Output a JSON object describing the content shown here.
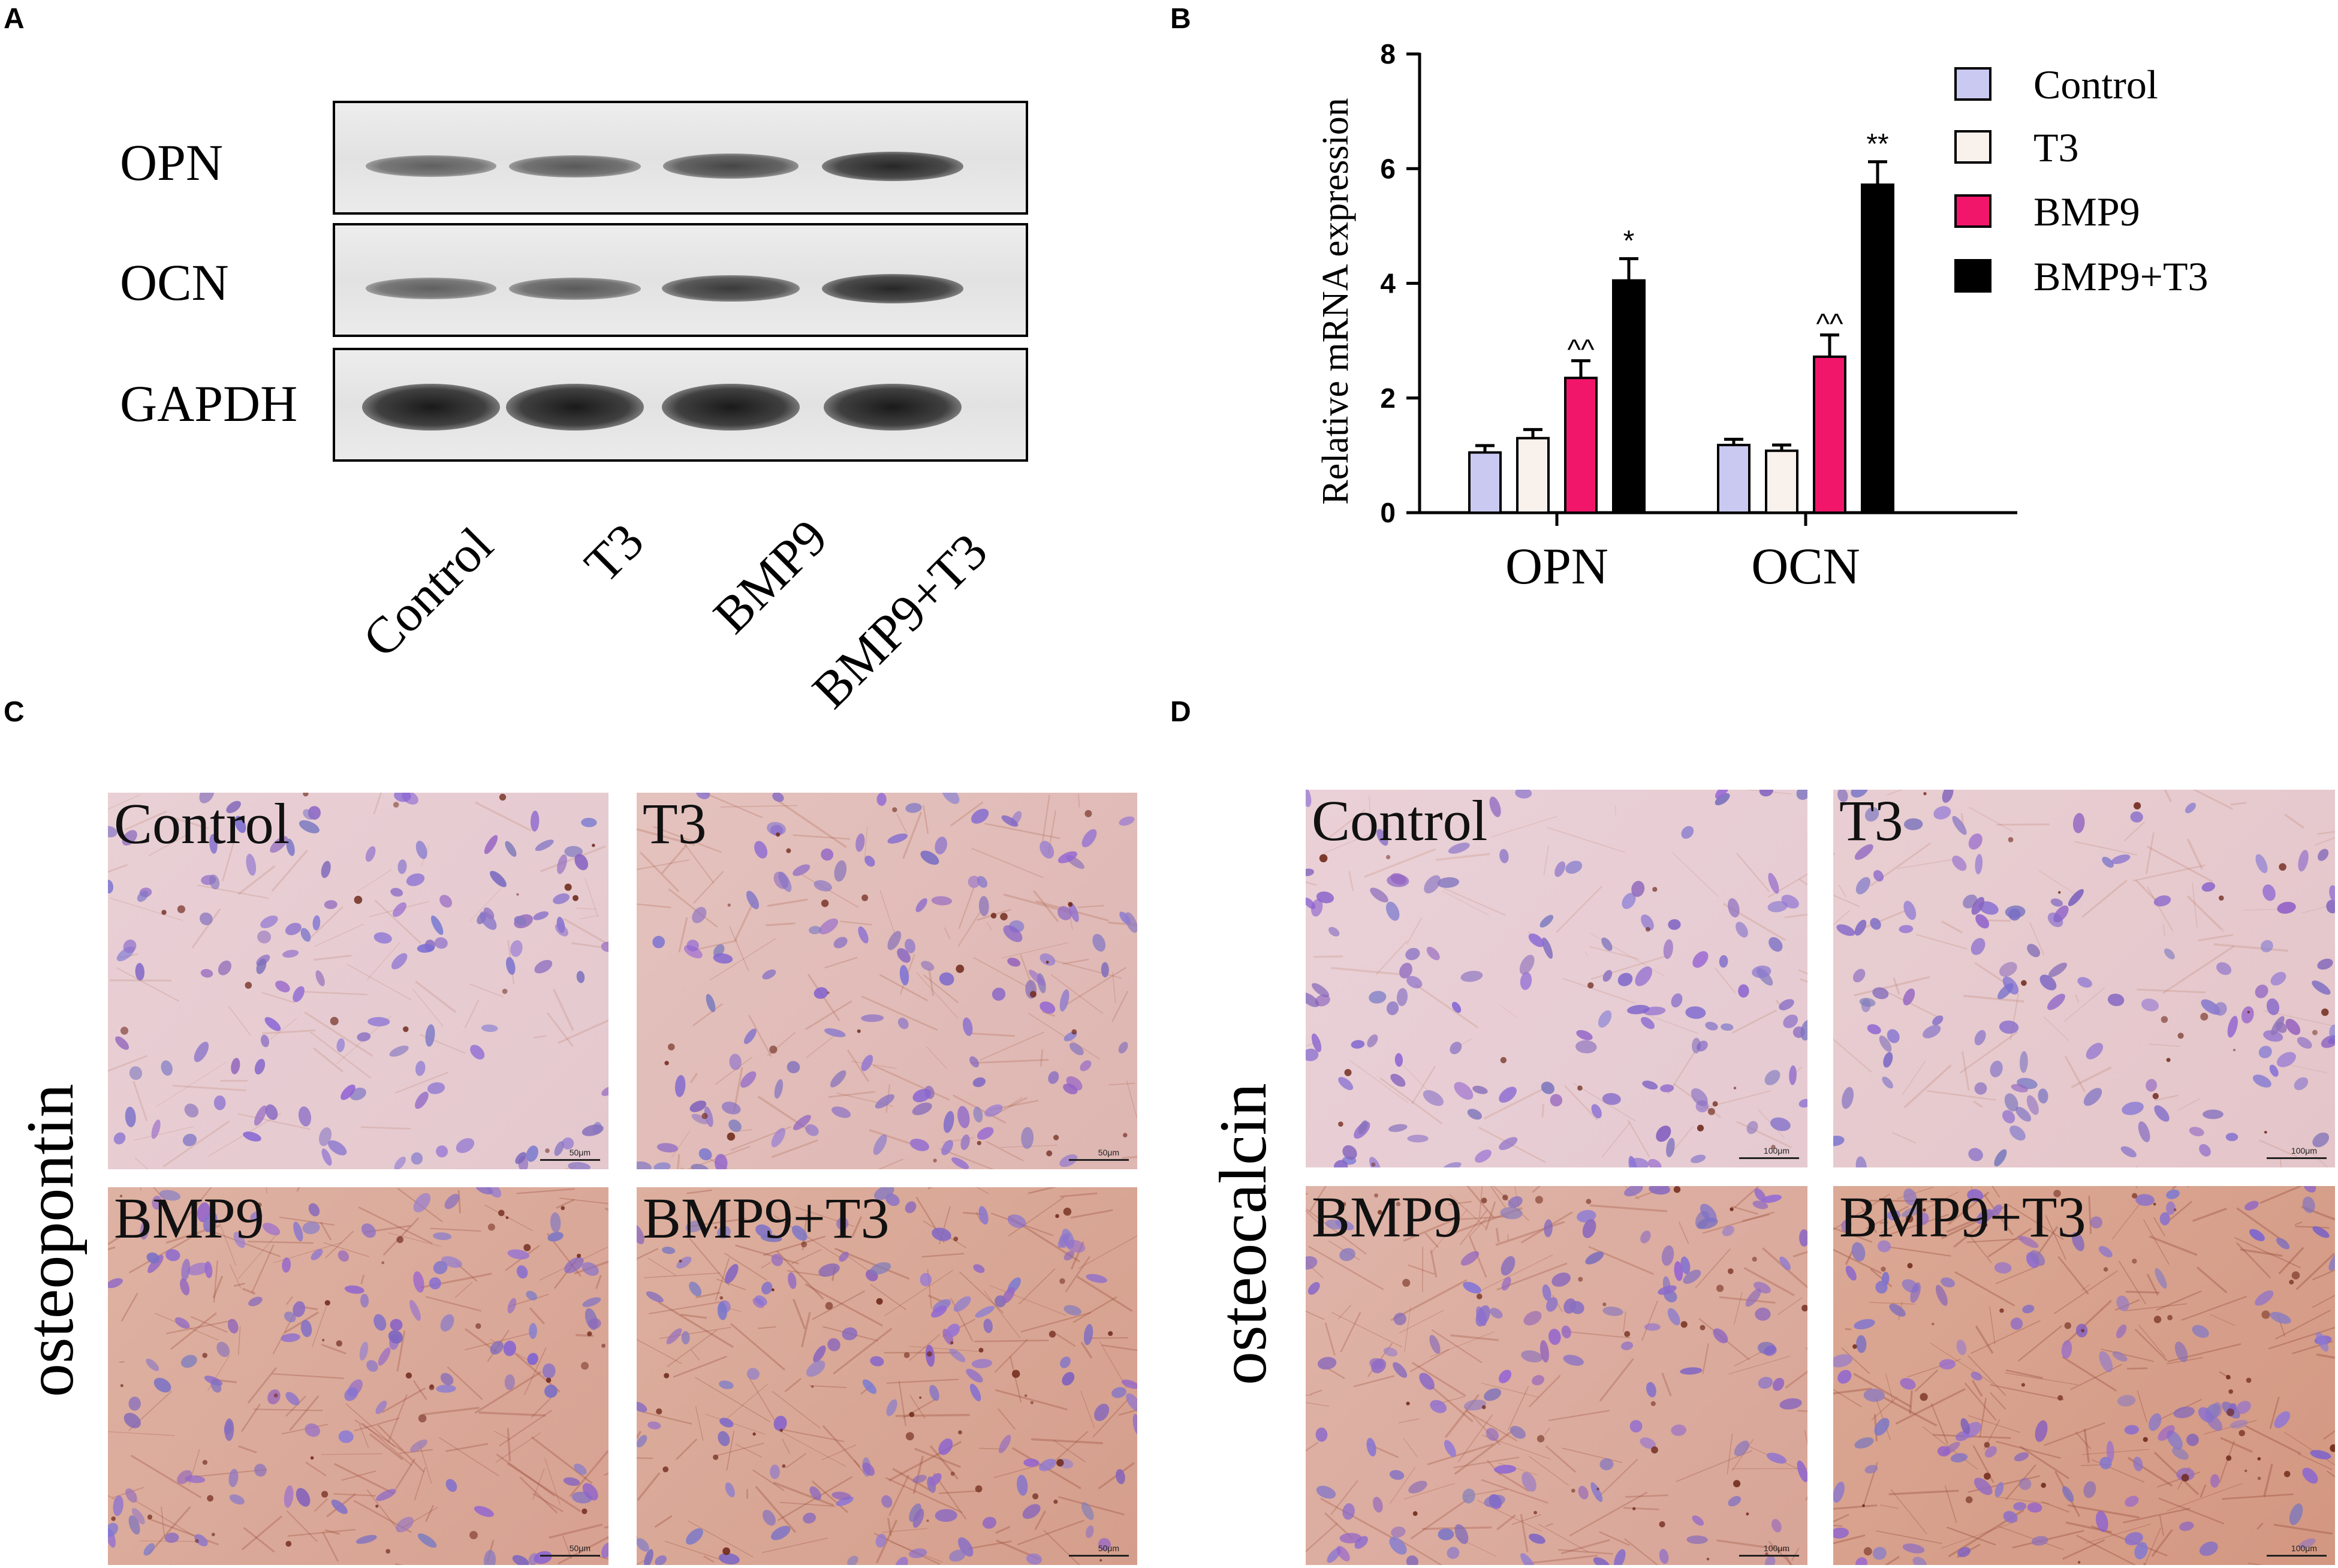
{
  "panels": {
    "A": {
      "letter": "A",
      "row_labels": [
        "OPN",
        "OCN",
        "GAPDH"
      ],
      "lane_labels": [
        "Control",
        "T3",
        "BMP9",
        "BMP9+T3"
      ],
      "band_intensity": {
        "OPN": [
          0.45,
          0.5,
          0.65,
          0.9
        ],
        "OCN": [
          0.45,
          0.5,
          0.75,
          0.9
        ],
        "GAPDH": [
          1.0,
          0.95,
          1.0,
          0.9
        ]
      }
    },
    "B": {
      "letter": "B",
      "legend": [
        "Control",
        "T3",
        "BMP9",
        "BMP9+T3"
      ]
    },
    "C": {
      "letter": "C",
      "stain": "osteopontin",
      "images": [
        {
          "label": "Control",
          "scale": "50μm",
          "brown": 0.15
        },
        {
          "label": "T3",
          "scale": "50μm",
          "brown": 0.4
        },
        {
          "label": "BMP9",
          "scale": "50μm",
          "brown": 0.7
        },
        {
          "label": "BMP9+T3",
          "scale": "50μm",
          "brown": 0.75
        }
      ]
    },
    "D": {
      "letter": "D",
      "stain": "osteocalcin",
      "images": [
        {
          "label": "Control",
          "scale": "100μm",
          "brown": 0.12
        },
        {
          "label": "T3",
          "scale": "100μm",
          "brown": 0.18
        },
        {
          "label": "BMP9",
          "scale": "100μm",
          "brown": 0.65
        },
        {
          "label": "BMP9+T3",
          "scale": "100μm",
          "brown": 0.85
        }
      ]
    }
  },
  "chart_data": {
    "type": "bar",
    "ylabel": "Relative mRNA expression",
    "ylim": [
      0,
      8
    ],
    "yticks": [
      "0",
      "2",
      "4",
      "6",
      "8"
    ],
    "categories": [
      "OPN",
      "OCN"
    ],
    "legend_position": "top-right",
    "series": [
      {
        "name": "Control",
        "color": "#c9c9f2",
        "values": [
          1.05,
          1.18
        ],
        "errors": [
          0.12,
          0.1
        ],
        "annotations": [
          "",
          ""
        ]
      },
      {
        "name": "T3",
        "color": "#f9f1ec",
        "values": [
          1.3,
          1.08
        ],
        "errors": [
          0.15,
          0.1
        ],
        "annotations": [
          "",
          ""
        ]
      },
      {
        "name": "BMP9",
        "color": "#f2166b",
        "values": [
          2.35,
          2.72
        ],
        "errors": [
          0.3,
          0.38
        ],
        "annotations": [
          "^^",
          "^^"
        ]
      },
      {
        "name": "BMP9+T3",
        "color": "#000000",
        "values": [
          4.05,
          5.72
        ],
        "errors": [
          0.38,
          0.4
        ],
        "annotations": [
          "*",
          "**"
        ]
      }
    ]
  }
}
